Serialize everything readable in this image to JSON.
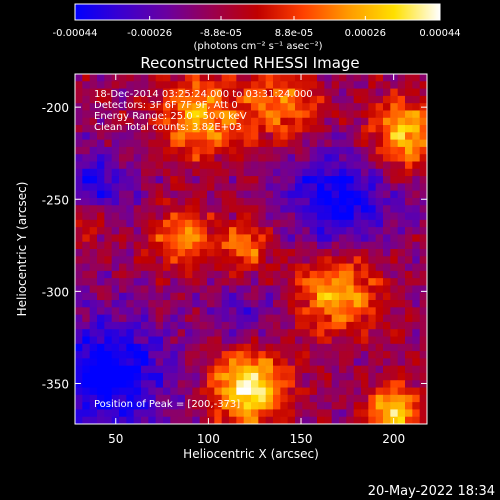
{
  "chart_data": {
    "type": "heatmap",
    "title": "Reconstructed RHESSI Image",
    "xlabel": "Heliocentric X (arcsec)",
    "ylabel": "Heliocentric Y (arcsec)",
    "x_ticks": [
      50,
      100,
      150,
      200
    ],
    "y_ticks": [
      -200,
      -250,
      -300,
      -350
    ],
    "xlim": [
      28,
      218
    ],
    "ylim": [
      -372,
      -182
    ],
    "colorbar": {
      "min": -0.00044,
      "max": 0.00044,
      "tick_values": [
        -0.00044,
        -0.00026,
        -8.8e-05,
        8.8e-05,
        0.00026,
        0.00044
      ],
      "tick_labels": [
        "-0.00044",
        "-0.00026",
        "-8.8e-05",
        "8.8e-05",
        "0.00026",
        "0.00044"
      ],
      "units_label": "(photons cm⁻² s⁻¹ asec⁻²)",
      "colormap": [
        "#0000ff",
        "#3a00d0",
        "#6a00a0",
        "#9a0050",
        "#c00000",
        "#ff4000",
        "#ff9a00",
        "#ffe000",
        "#ffffff"
      ]
    },
    "annotations": [
      "18-Dec-2014 03:25:24.000 to 03:31:24.000",
      "Detectors: 3F 6F 7F 9F, Att 0",
      "Energy Range: 25.0 - 50.0 keV",
      "Clean     Total counts: 3.82E+03"
    ],
    "peak_label": "Position of Peak = [200,-373]",
    "peak": [
      200,
      -373
    ],
    "sources": [
      {
        "x": 122,
        "y": -352,
        "amp": 1.0,
        "sigma": 14
      },
      {
        "x": 200,
        "y": -365,
        "amp": 0.85,
        "sigma": 10
      },
      {
        "x": 170,
        "y": -300,
        "amp": 0.7,
        "sigma": 16
      },
      {
        "x": 205,
        "y": -215,
        "amp": 0.75,
        "sigma": 14
      },
      {
        "x": 95,
        "y": -205,
        "amp": 0.65,
        "sigma": 16
      },
      {
        "x": 140,
        "y": -200,
        "amp": 0.55,
        "sigma": 14
      },
      {
        "x": 85,
        "y": -270,
        "amp": 0.55,
        "sigma": 12
      },
      {
        "x": 120,
        "y": -275,
        "amp": 0.55,
        "sigma": 10
      },
      {
        "x": 35,
        "y": -260,
        "amp": 0.4,
        "sigma": 10
      }
    ],
    "negatives": [
      {
        "x": 45,
        "y": -345,
        "amp": 0.7,
        "sigma": 22
      },
      {
        "x": 40,
        "y": -245,
        "amp": 0.5,
        "sigma": 14
      },
      {
        "x": 170,
        "y": -250,
        "amp": 0.6,
        "sigma": 20
      },
      {
        "x": 120,
        "y": -315,
        "amp": 0.3,
        "sigma": 12
      }
    ]
  },
  "footer": {
    "timestamp": "20-May-2022 18:34"
  }
}
